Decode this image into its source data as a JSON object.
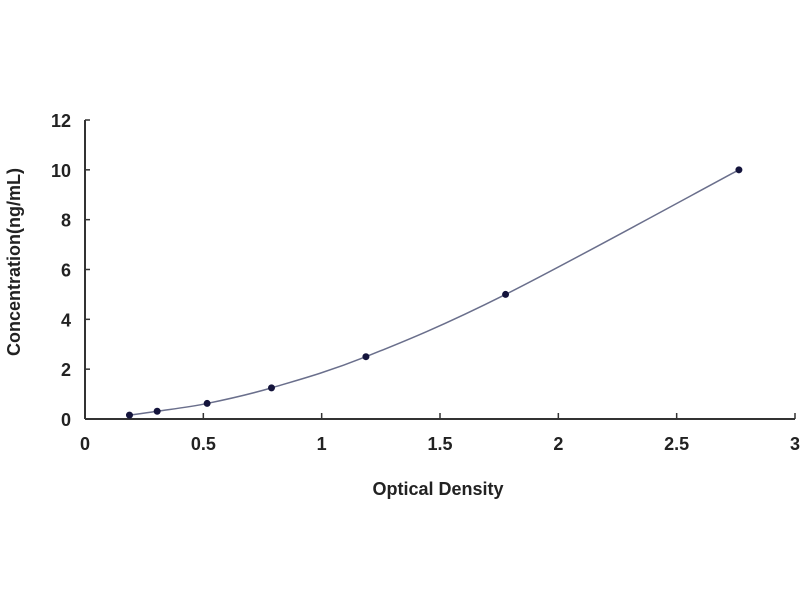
{
  "chart_data": {
    "type": "scatter",
    "title": "",
    "xlabel": "Optical Density",
    "ylabel": "Concentration(ng/mL)",
    "xlim": [
      0,
      3
    ],
    "ylim": [
      0,
      12
    ],
    "xticks": [
      "0",
      "0.5",
      "1",
      "1.5",
      "2",
      "2.5",
      "3"
    ],
    "yticks": [
      "0",
      "2",
      "4",
      "6",
      "8",
      "10",
      "12"
    ],
    "grid": false,
    "fit_line": "smooth curve through points",
    "colors": {
      "points": "#14143c",
      "line": "#6a6f8c",
      "axis": "#333333"
    },
    "x": [
      0.188,
      0.305,
      0.516,
      0.788,
      1.187,
      1.777,
      2.763
    ],
    "y": [
      0.156,
      0.312,
      0.625,
      1.25,
      2.5,
      5,
      10
    ]
  }
}
